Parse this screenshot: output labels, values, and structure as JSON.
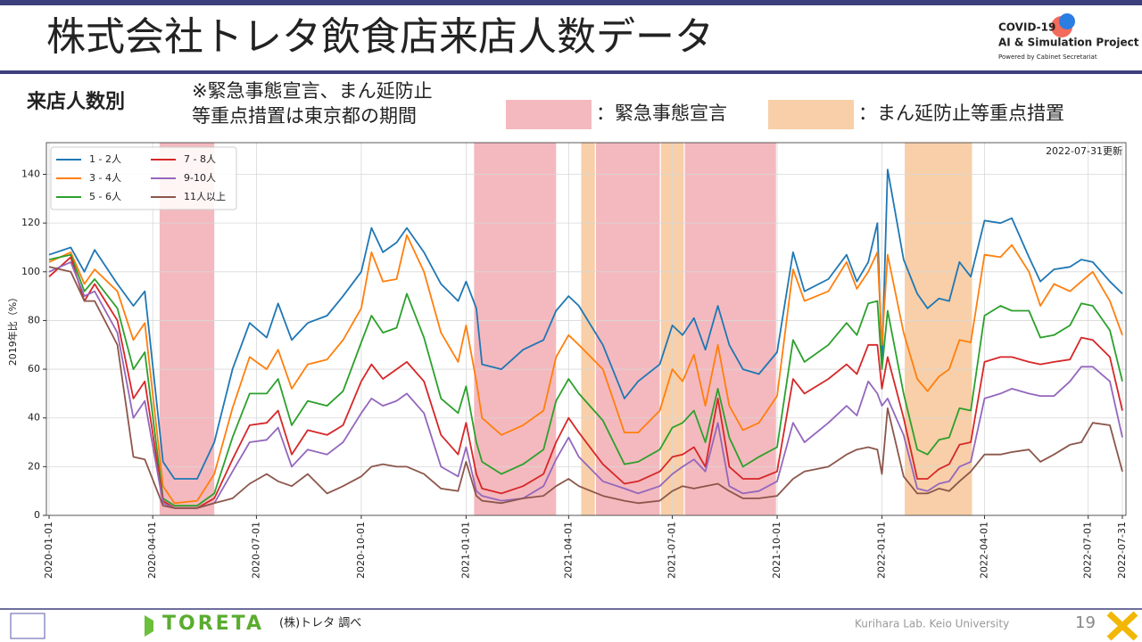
{
  "slide": {
    "title": "株式会社トレタ飲食店来店人数データ",
    "logo_title": "COVID-19",
    "logo_subtitle": "AI & Simulation Project",
    "logo_credit": "Powered by Cabinet Secretariat",
    "section": "来店人数別",
    "note_lines": [
      "※緊急事態宣言、まん延防止",
      "等重点措置は東京都の期間"
    ],
    "footer_brand": "TORETA",
    "footer_source": "(株)トレタ 調べ",
    "footer_lab": "Kurihara Lab. Keio University",
    "page_number": "19"
  },
  "chart_data": {
    "type": "line",
    "updated": "2022-07-31更新",
    "ylabel": "2019年比（%）",
    "emergency_label": "：緊急事態宣言",
    "emergency_color": "#f4b9be",
    "quasi_label": "：まん延防止等重点措置",
    "quasi_color": "#f8cfa8",
    "emergency_periods": [
      {
        "start": "2020-04-07",
        "end": "2020-05-25"
      },
      {
        "start": "2021-01-08",
        "end": "2021-03-21"
      },
      {
        "start": "2021-04-25",
        "end": "2021-06-20"
      },
      {
        "start": "2021-07-12",
        "end": "2021-09-30"
      }
    ],
    "quasi_periods": [
      {
        "start": "2021-04-12",
        "end": "2021-04-24"
      },
      {
        "start": "2021-06-21",
        "end": "2021-07-11"
      },
      {
        "start": "2022-01-21",
        "end": "2022-03-21"
      }
    ],
    "x": [
      "2020-01-01",
      "2020-01-20",
      "2020-02-01",
      "2020-02-10",
      "2020-03-01",
      "2020-03-15",
      "2020-03-25",
      "2020-04-10",
      "2020-04-20",
      "2020-05-10",
      "2020-05-25",
      "2020-06-10",
      "2020-06-25",
      "2020-07-10",
      "2020-07-20",
      "2020-08-01",
      "2020-08-15",
      "2020-09-01",
      "2020-09-15",
      "2020-10-01",
      "2020-10-10",
      "2020-10-20",
      "2020-11-01",
      "2020-11-10",
      "2020-11-25",
      "2020-12-10",
      "2020-12-25",
      "2021-01-01",
      "2021-01-10",
      "2021-01-15",
      "2021-02-01",
      "2021-02-20",
      "2021-03-10",
      "2021-03-21",
      "2021-04-01",
      "2021-04-10",
      "2021-05-01",
      "2021-05-20",
      "2021-06-01",
      "2021-06-20",
      "2021-07-01",
      "2021-07-10",
      "2021-07-20",
      "2021-07-30",
      "2021-08-10",
      "2021-08-20",
      "2021-09-01",
      "2021-09-15",
      "2021-10-01",
      "2021-10-15",
      "2021-10-25",
      "2021-11-15",
      "2021-12-01",
      "2021-12-10",
      "2021-12-20",
      "2021-12-28",
      "2022-01-01",
      "2022-01-06",
      "2022-01-20",
      "2022-02-01",
      "2022-02-10",
      "2022-02-20",
      "2022-03-01",
      "2022-03-10",
      "2022-03-20",
      "2022-04-01",
      "2022-04-15",
      "2022-04-25",
      "2022-05-10",
      "2022-05-20",
      "2022-06-01",
      "2022-06-15",
      "2022-06-25",
      "2022-07-05",
      "2022-07-20",
      "2022-07-31"
    ],
    "series": [
      {
        "name": "1 - 2人",
        "color": "#1f77b4",
        "values": [
          107,
          110,
          100,
          109,
          95,
          86,
          92,
          22,
          15,
          15,
          30,
          60,
          79,
          73,
          87,
          72,
          79,
          82,
          90,
          100,
          118,
          108,
          112,
          118,
          108,
          95,
          88,
          96,
          85,
          62,
          60,
          68,
          72,
          84,
          90,
          86,
          70,
          48,
          55,
          62,
          78,
          74,
          81,
          68,
          86,
          70,
          60,
          58,
          67,
          108,
          92,
          97,
          107,
          96,
          104,
          120,
          62,
          142,
          105,
          91,
          85,
          89,
          88,
          104,
          98,
          121,
          120,
          122,
          106,
          96,
          101,
          102,
          105,
          104,
          96,
          91
        ]
      },
      {
        "name": "3 - 4人",
        "color": "#ff7f0e",
        "values": [
          104,
          108,
          95,
          101,
          92,
          72,
          79,
          12,
          5,
          6,
          17,
          44,
          65,
          60,
          68,
          52,
          62,
          64,
          72,
          85,
          108,
          96,
          97,
          115,
          100,
          75,
          63,
          78,
          55,
          40,
          33,
          37,
          43,
          65,
          74,
          70,
          60,
          34,
          34,
          43,
          60,
          55,
          66,
          45,
          70,
          45,
          35,
          38,
          49,
          101,
          88,
          92,
          104,
          93,
          100,
          108,
          70,
          107,
          75,
          56,
          51,
          57,
          60,
          72,
          71,
          107,
          106,
          111,
          100,
          86,
          95,
          92,
          96,
          100,
          88,
          74
        ]
      },
      {
        "name": "5 - 6人",
        "color": "#2ca02c",
        "values": [
          105,
          107,
          92,
          97,
          85,
          60,
          67,
          7,
          4,
          4,
          9,
          32,
          50,
          50,
          56,
          37,
          47,
          45,
          51,
          71,
          82,
          75,
          77,
          91,
          73,
          48,
          42,
          53,
          30,
          22,
          17,
          21,
          27,
          47,
          56,
          50,
          39,
          21,
          22,
          27,
          36,
          38,
          43,
          30,
          52,
          32,
          20,
          24,
          28,
          72,
          63,
          70,
          79,
          74,
          87,
          88,
          60,
          84,
          50,
          27,
          25,
          31,
          32,
          44,
          43,
          82,
          86,
          84,
          84,
          73,
          74,
          78,
          87,
          86,
          76,
          55
        ]
      },
      {
        "name": "7 - 8人",
        "color": "#d62728",
        "values": [
          98,
          106,
          88,
          95,
          80,
          48,
          55,
          6,
          3,
          3,
          7,
          23,
          37,
          38,
          43,
          25,
          35,
          33,
          37,
          55,
          62,
          56,
          60,
          63,
          55,
          33,
          25,
          38,
          17,
          11,
          9,
          12,
          17,
          30,
          40,
          34,
          21,
          13,
          14,
          18,
          24,
          25,
          28,
          20,
          48,
          20,
          15,
          15,
          18,
          56,
          50,
          56,
          62,
          58,
          70,
          70,
          52,
          65,
          40,
          15,
          15,
          19,
          21,
          29,
          30,
          63,
          65,
          65,
          63,
          62,
          63,
          64,
          73,
          72,
          65,
          43
        ]
      },
      {
        "name": "9-10人",
        "color": "#9467bd",
        "values": [
          100,
          104,
          90,
          92,
          75,
          40,
          47,
          5,
          3,
          3,
          5,
          18,
          30,
          31,
          36,
          20,
          27,
          25,
          30,
          42,
          48,
          45,
          47,
          50,
          42,
          20,
          16,
          28,
          10,
          8,
          6,
          7,
          12,
          23,
          32,
          24,
          14,
          11,
          9,
          12,
          17,
          20,
          23,
          18,
          38,
          12,
          9,
          10,
          14,
          38,
          30,
          38,
          45,
          41,
          55,
          50,
          45,
          48,
          33,
          11,
          10,
          13,
          14,
          20,
          22,
          48,
          50,
          52,
          50,
          49,
          49,
          55,
          61,
          61,
          55,
          32
        ]
      },
      {
        "name": "11人以上",
        "color": "#8c564b",
        "values": [
          102,
          100,
          88,
          88,
          70,
          24,
          23,
          4,
          3,
          3,
          5,
          7,
          13,
          17,
          14,
          12,
          17,
          9,
          12,
          16,
          20,
          21,
          20,
          20,
          17,
          11,
          10,
          22,
          8,
          6,
          5,
          7,
          8,
          12,
          15,
          12,
          8,
          6,
          5,
          6,
          10,
          12,
          11,
          12,
          13,
          10,
          7,
          7,
          8,
          15,
          18,
          20,
          25,
          27,
          28,
          27,
          17,
          44,
          16,
          9,
          9,
          11,
          10,
          14,
          18,
          25,
          25,
          26,
          27,
          22,
          25,
          29,
          30,
          38,
          37,
          18
        ]
      }
    ],
    "xlim": [
      "2020-01-01",
      "2022-07-31"
    ],
    "xticks": [
      "2020-01-01",
      "2020-04-01",
      "2020-07-01",
      "2020-10-01",
      "2021-01-01",
      "2021-04-01",
      "2021-07-01",
      "2021-10-01",
      "2022-01-01",
      "2022-04-01",
      "2022-07-01",
      "2022-07-31"
    ],
    "ylim": [
      0,
      153
    ],
    "yticks": [
      0,
      20,
      40,
      60,
      80,
      100,
      120,
      140
    ],
    "grid": true,
    "legend": "upper left"
  }
}
